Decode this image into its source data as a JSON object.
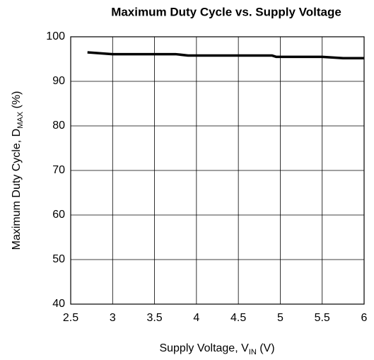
{
  "chart_data": {
    "type": "line",
    "title": "Maximum Duty Cycle vs. Supply Voltage",
    "x_label": {
      "text": "Supply Voltage, V",
      "sub": "IN",
      "suffix": " (V)"
    },
    "y_label": {
      "text": "Maximum Duty Cycle, D",
      "sub": "MAX",
      "suffix": " (%)"
    },
    "x": [
      2.7,
      3.0,
      3.75,
      3.9,
      4.9,
      4.95,
      5.5,
      5.75,
      6.0
    ],
    "series": [
      {
        "color": "#000000",
        "values": [
          96.5,
          96.1,
          96.1,
          95.8,
          95.8,
          95.5,
          95.5,
          95.2,
          95.2
        ]
      }
    ],
    "xlim": [
      2.5,
      6
    ],
    "ylim": [
      40,
      100
    ],
    "xticks": [
      2.5,
      3,
      3.5,
      4,
      4.5,
      5,
      5.5,
      6
    ],
    "yticks": [
      40,
      50,
      60,
      70,
      80,
      90,
      100
    ],
    "grid": true
  }
}
